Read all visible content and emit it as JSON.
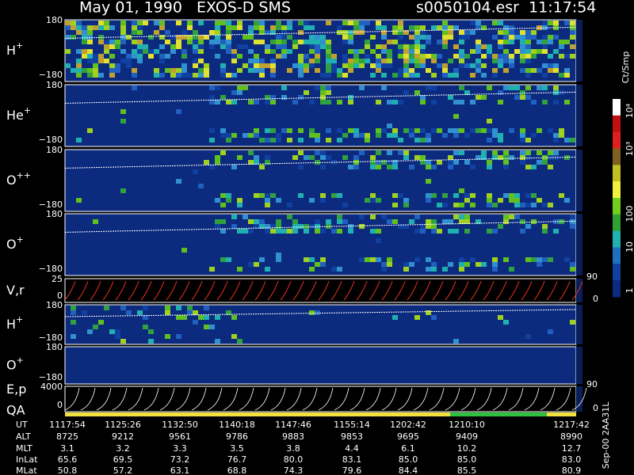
{
  "header": {
    "title": "May 01, 1990   EXOS-D SMS",
    "file": "s0050104.esr  11:17:54"
  },
  "panels": [
    {
      "label": "H",
      "sup": "+",
      "ticks": [
        "180",
        "−180"
      ]
    },
    {
      "label": "He",
      "sup": "+",
      "ticks": [
        "180",
        "−180"
      ]
    },
    {
      "label": "O",
      "sup": "++",
      "ticks": [
        "180",
        "−180"
      ]
    },
    {
      "label": "O",
      "sup": "+",
      "ticks": [
        "180",
        "−180"
      ]
    },
    {
      "label": "V,r",
      "sup": "",
      "ticks": [
        "25",
        "0"
      ],
      "right": [
        "90",
        "0"
      ]
    },
    {
      "label": "H",
      "sup": "+",
      "ticks": [
        "180",
        "−180"
      ]
    },
    {
      "label": "O",
      "sup": "+",
      "ticks": [
        "180",
        "−180"
      ]
    },
    {
      "label": "E,p",
      "sup": "",
      "ticks": [
        "4000",
        "0"
      ],
      "right": [
        "90",
        "0"
      ]
    }
  ],
  "qa": "QA",
  "colorbar": {
    "unit": "Ct/Smp",
    "ticks": [
      "10⁴",
      "10³",
      "100",
      "10",
      "1"
    ]
  },
  "footer": "Sep-00 2AA31L",
  "table": {
    "rows": [
      {
        "name": "UT",
        "values": [
          "1117:54",
          "1125:26",
          "1132:50",
          "1140:18",
          "1147:46",
          "1155:14",
          "1202:42",
          "1210:10",
          "1217:42"
        ]
      },
      {
        "name": "ALT",
        "values": [
          "8725",
          "9212",
          "9561",
          "9786",
          "9883",
          "9853",
          "9695",
          "9409",
          "8990"
        ]
      },
      {
        "name": "MLT",
        "values": [
          "3.1",
          "3.2",
          "3.3",
          "3.5",
          "3.8",
          "4.4",
          "6.1",
          "10.2",
          "12.7"
        ]
      },
      {
        "name": "InLat",
        "values": [
          "65.6",
          "69.5",
          "73.2",
          "76.7",
          "80.0",
          "83.1",
          "85.0",
          "85.0",
          "83.0"
        ]
      },
      {
        "name": "MLat",
        "values": [
          "50.8",
          "57.2",
          "63.1",
          "68.8",
          "74.3",
          "79.6",
          "84.4",
          "85.5",
          "80.9"
        ]
      }
    ]
  }
}
